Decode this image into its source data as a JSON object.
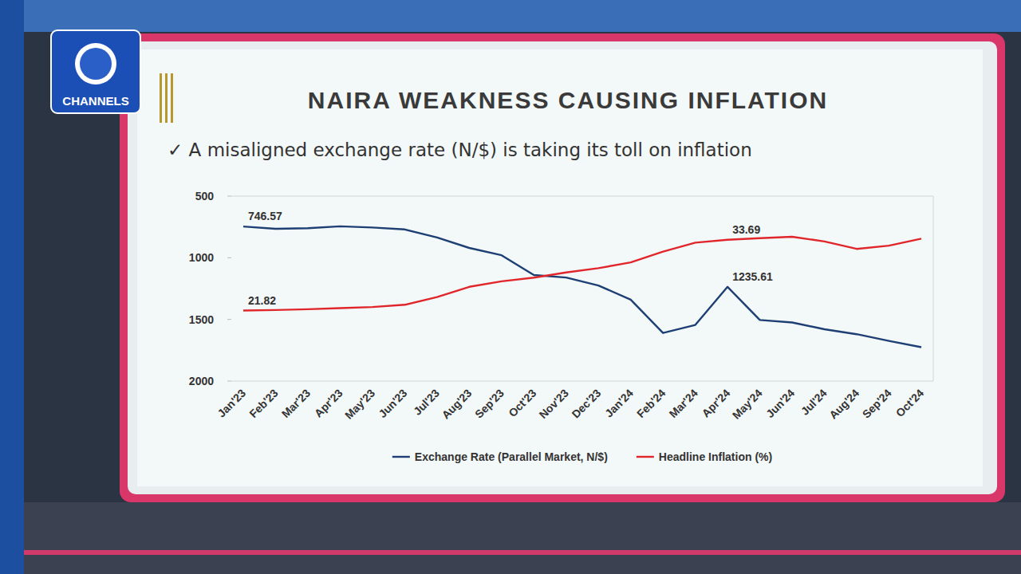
{
  "logo": "CHANNELS",
  "chart_data": {
    "type": "line",
    "title": "NAIRA WEAKNESS CAUSING INFLATION",
    "subtitle": "✓ A misaligned exchange rate (N/$) is taking its toll on inflation",
    "categories": [
      "Jan'23",
      "Feb'23",
      "Mar'23",
      "Apr'23",
      "May'23",
      "Jun'23",
      "Jul'23",
      "Aug'23",
      "Sep'23",
      "Oct'23",
      "Nov'23",
      "Dec'23",
      "Jan'24",
      "Feb'24",
      "Mar'24",
      "Apr'24",
      "May'24",
      "Jun'24",
      "Jul'24",
      "Aug'24",
      "Sep'24",
      "Oct'24"
    ],
    "series": [
      {
        "name": "Exchange Rate (Parallel Market, N/$)",
        "color": "#1d3f73",
        "values": [
          746.57,
          765,
          760,
          745,
          755,
          770,
          835,
          920,
          980,
          1140,
          1160,
          1225,
          1340,
          1610,
          1545,
          1235.61,
          1505,
          1525,
          1580,
          1620,
          1675,
          1725
        ]
      },
      {
        "name": "Headline Inflation (%)",
        "color": "#e1262b",
        "axis": "y2",
        "values": [
          21.82,
          21.91,
          22.04,
          22.22,
          22.41,
          22.79,
          24.08,
          25.8,
          26.72,
          27.33,
          28.2,
          28.92,
          29.9,
          31.7,
          33.2,
          33.69,
          33.95,
          34.19,
          33.4,
          32.15,
          32.7,
          33.88
        ]
      }
    ],
    "ylim": [
      2000,
      500
    ],
    "yticks": [
      500,
      1000,
      1500,
      2000
    ],
    "y2lim": [
      10,
      41
    ],
    "grid": false,
    "legend": "bottom",
    "annotations": [
      {
        "text": "746.57",
        "x": "Jan'23",
        "y": 746.57
      },
      {
        "text": "21.82",
        "x": "Jan'23",
        "y": 21.82,
        "axis": "y2"
      },
      {
        "text": "1235.61",
        "x": "Apr'24",
        "y": 1235.61
      },
      {
        "text": "33.69",
        "x": "Apr'24",
        "y": 33.69,
        "axis": "y2"
      }
    ]
  }
}
